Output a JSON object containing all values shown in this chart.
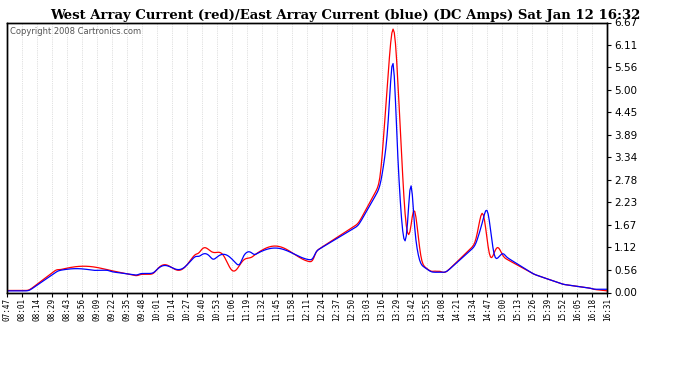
{
  "title": "West Array Current (red)/East Array Current (blue) (DC Amps) Sat Jan 12 16:32",
  "copyright": "Copyright 2008 Cartronics.com",
  "ylabel_values": [
    0.0,
    0.56,
    1.12,
    1.67,
    2.23,
    2.78,
    3.34,
    3.89,
    4.45,
    5.0,
    5.56,
    6.11,
    6.67
  ],
  "ymin": 0.0,
  "ymax": 6.67,
  "x_labels": [
    "07:47",
    "08:01",
    "08:14",
    "08:29",
    "08:43",
    "08:56",
    "09:09",
    "09:22",
    "09:35",
    "09:48",
    "10:01",
    "10:14",
    "10:27",
    "10:40",
    "10:53",
    "11:06",
    "11:19",
    "11:32",
    "11:45",
    "11:58",
    "12:11",
    "12:24",
    "12:37",
    "12:50",
    "13:03",
    "13:16",
    "13:29",
    "13:42",
    "13:55",
    "14:08",
    "14:21",
    "14:34",
    "14:47",
    "15:00",
    "15:13",
    "15:26",
    "15:39",
    "15:52",
    "16:05",
    "16:18",
    "16:31"
  ],
  "plot_bg": "#ffffff",
  "fig_bg": "#ffffff",
  "grid_color": "#aaaaaa",
  "line_red_color": "#ff0000",
  "line_blue_color": "#0000ff",
  "border_color": "#000000",
  "copyright_color": "#555555"
}
